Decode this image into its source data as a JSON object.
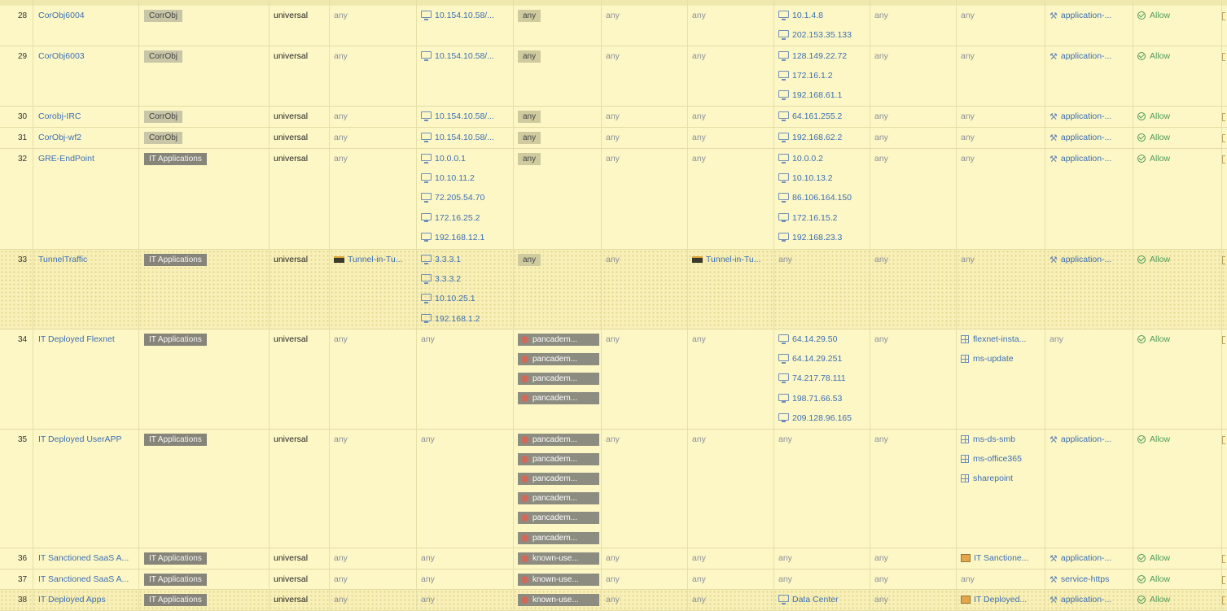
{
  "rules": [
    {
      "num": "28",
      "name": "CorObj6004",
      "tag": "CorrObj",
      "tagType": "corr",
      "type": "universal",
      "srcZone": "any",
      "srcAddr": [
        "10.154.10.58/..."
      ],
      "srcUser": "any",
      "srcUserType": "tag",
      "dstZone": "any",
      "dstAddr": [
        "10.1.4.8",
        "202.153.35.133"
      ],
      "application": "any",
      "service": "any",
      "profile": "application-...",
      "action": "Allow"
    },
    {
      "num": "29",
      "name": "CorObj6003",
      "tag": "CorrObj",
      "tagType": "corr",
      "type": "universal",
      "srcZone": "any",
      "srcAddr": [
        "10.154.10.58/..."
      ],
      "srcUser": "any",
      "srcUserType": "tag",
      "dstZone": "any",
      "dstAddr": [
        "128.149.22.72",
        "172.16.1.2",
        "192.168.61.1"
      ],
      "application": "any",
      "service": "any",
      "profile": "application-...",
      "action": "Allow"
    },
    {
      "num": "30",
      "name": "Corobj-IRC",
      "tag": "CorrObj",
      "tagType": "corr",
      "type": "universal",
      "srcZone": "any",
      "srcAddr": [
        "10.154.10.58/..."
      ],
      "srcUser": "any",
      "srcUserType": "tag",
      "dstZone": "any",
      "dstAddr": [
        "64.161.255.2"
      ],
      "application": "any",
      "service": "any",
      "profile": "application-...",
      "action": "Allow"
    },
    {
      "num": "31",
      "name": "CorObj-wf2",
      "tag": "CorrObj",
      "tagType": "corr",
      "type": "universal",
      "srcZone": "any",
      "srcAddr": [
        "10.154.10.58/..."
      ],
      "srcUser": "any",
      "srcUserType": "tag",
      "dstZone": "any",
      "dstAddr": [
        "192.168.62.2"
      ],
      "application": "any",
      "service": "any",
      "profile": "application-...",
      "action": "Allow"
    },
    {
      "num": "32",
      "name": "GRE-EndPoint",
      "tag": "IT Applications",
      "tagType": "app",
      "type": "universal",
      "srcZone": "any",
      "srcAddr": [
        "10.0.0.1",
        "10.10.11.2",
        "72.205.54.70",
        "172.16.25.2",
        "192.168.12.1"
      ],
      "srcUser": "any",
      "srcUserType": "tag",
      "dstZone": "any",
      "dstAddr": [
        "10.0.0.2",
        "10.10.13.2",
        "86.106.164.150",
        "172.16.15.2",
        "192.168.23.3"
      ],
      "application": "any",
      "service": "any",
      "profile": "application-...",
      "action": "Allow"
    },
    {
      "num": "33",
      "name": "TunnelTraffic",
      "tag": "IT Applications",
      "tagType": "app",
      "type": "universal",
      "srcZone": "Tunnel-in-Tu...",
      "srcZoneIcon": "tunnel-zone-icon",
      "srcAddr": [
        "3.3.3.1",
        "3.3.3.2",
        "10.10.25.1",
        "192.168.1.2"
      ],
      "srcUser": "any",
      "srcUserType": "tag",
      "dstZone": "Tunnel-in-Tu...",
      "dstZoneIcon": "tunnel-zone-icon",
      "dstAddr": [],
      "dstAddrText": "any",
      "application": "any",
      "service": "any",
      "profile": "application-...",
      "action": "Allow"
    },
    {
      "num": "34",
      "name": "IT Deployed Flexnet",
      "tag": "IT Applications",
      "tagType": "app",
      "type": "universal",
      "srcZone": "any",
      "srcAddr": [],
      "srcAddrText": "any",
      "srcUserList": [
        "pancadem...",
        "pancadem...",
        "pancadem...",
        "pancadem..."
      ],
      "dstZone": "any",
      "dstAddr": [
        "64.14.29.50",
        "64.14.29.251",
        "74.217.78.111",
        "198.71.66.53",
        "209.128.96.165"
      ],
      "applications": [
        "flexnet-insta...",
        "ms-update"
      ],
      "service": "any",
      "profile": "",
      "action": "Allow"
    },
    {
      "num": "35",
      "name": "IT Deployed UserAPP",
      "tag": "IT Applications",
      "tagType": "app",
      "type": "universal",
      "srcZone": "any",
      "srcAddr": [],
      "srcAddrText": "any",
      "srcUserList": [
        "pancadem...",
        "pancadem...",
        "pancadem...",
        "pancadem...",
        "pancadem...",
        "pancadem..."
      ],
      "dstZone": "any",
      "dstAddr": [],
      "dstAddrText": "any",
      "applications": [
        "ms-ds-smb",
        "ms-office365",
        "sharepoint"
      ],
      "service": "any",
      "profile": "application-...",
      "action": "Allow"
    },
    {
      "num": "36",
      "name": "IT Sanctioned SaaS A...",
      "tag": "IT Applications",
      "tagType": "app",
      "type": "universal",
      "srcZone": "any",
      "srcAddr": [],
      "srcAddrText": "any",
      "srcUserList": [
        "known-use..."
      ],
      "dstZone": "any",
      "dstAddr": [],
      "dstAddrText": "any",
      "applicationGroup": "IT Sanctione...",
      "service": "any",
      "profile": "application-...",
      "action": "Allow"
    },
    {
      "num": "37",
      "name": "IT Sanctioned SaaS A...",
      "tag": "IT Applications",
      "tagType": "app",
      "type": "universal",
      "srcZone": "any",
      "srcAddr": [],
      "srcAddrText": "any",
      "srcUserList": [
        "known-use..."
      ],
      "dstZone": "any",
      "dstAddr": [],
      "dstAddrText": "any",
      "application": "any",
      "applicationPlain": true,
      "service": "service-https",
      "profile": "",
      "action": "Allow"
    },
    {
      "num": "38",
      "name": "IT Deployed Apps",
      "tag": "IT Applications",
      "tagType": "app",
      "type": "universal",
      "srcZone": "any",
      "srcAddr": [],
      "srcAddrText": "any",
      "srcUserList": [
        "known-use..."
      ],
      "dstZone": "any",
      "dstAddr": [
        "Data Center"
      ],
      "applicationGroup": "IT Deployed...",
      "service": "any",
      "profile": "application-...",
      "action": "Allow"
    }
  ],
  "icons": {
    "address": "monitor-icon",
    "profile": "wrench-icon",
    "allow": "check-circle-icon",
    "user": "user-icon",
    "app": "app-grid-icon",
    "group": "app-group-icon"
  }
}
